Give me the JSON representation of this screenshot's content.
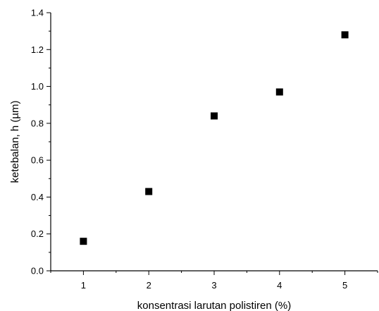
{
  "chart_data": {
    "type": "scatter",
    "title": "",
    "xlabel": "konsentrasi larutan polistiren (%)",
    "ylabel": "ketebalan, h (µm)",
    "xlim": [
      0.5,
      5.5
    ],
    "ylim": [
      0,
      1.4
    ],
    "x_ticks": [
      "1",
      "2",
      "3",
      "4",
      "5"
    ],
    "y_ticks": [
      "0.0",
      "0.2",
      "0.4",
      "0.6",
      "0.8",
      "1.0",
      "1.2",
      "1.4"
    ],
    "grid": false,
    "marker": "square",
    "marker_color": "#000000",
    "series": [
      {
        "x": [
          1,
          2,
          3,
          4,
          5
        ],
        "y": [
          0.16,
          0.43,
          0.84,
          0.97,
          1.28
        ]
      }
    ]
  }
}
